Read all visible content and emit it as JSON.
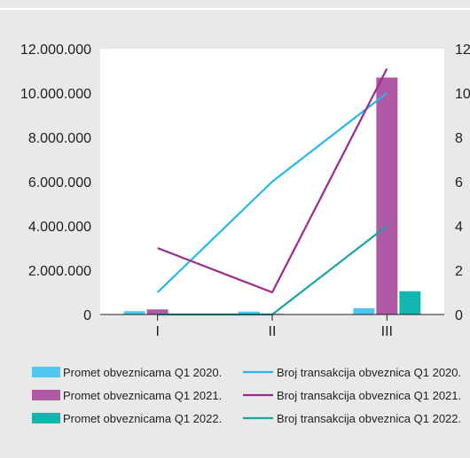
{
  "chart_data": {
    "type": "bar",
    "categories": [
      "I",
      "II",
      "III"
    ],
    "ylim": [
      0,
      12000000
    ],
    "y2lim": [
      0,
      12
    ],
    "yticks": [
      0,
      2000000,
      4000000,
      6000000,
      8000000,
      10000000,
      12000000
    ],
    "ytick_labels": [
      "0",
      "2.000.000",
      "4.000.000",
      "6.000.000",
      "8.000.000",
      "10.000.000",
      "12.000.000"
    ],
    "y2ticks": [
      0,
      2,
      4,
      6,
      8,
      10,
      12
    ],
    "y2tick_labels": [
      "0",
      "2",
      "4",
      "6",
      "8",
      "10",
      "12"
    ],
    "grid": false,
    "legend_position": "bottom",
    "bar_series": [
      {
        "name": "Promet obveznicama Q1 2020.",
        "color": "#4fc8f0",
        "values": [
          150000,
          130000,
          280000
        ]
      },
      {
        "name": "Promet obveznicama Q1 2021.",
        "color": "#b05aa6",
        "values": [
          230000,
          30000,
          10700000
        ]
      },
      {
        "name": "Promet obveznicama Q1 2022.",
        "color": "#13b5b1",
        "values": [
          20000,
          10000,
          1050000
        ]
      }
    ],
    "line_series": [
      {
        "name": "Broj transakcija obveznica Q1 2020.",
        "color": "#24b7ec",
        "values": [
          1,
          6,
          10
        ]
      },
      {
        "name": "Broj transakcija obveznica Q1 2021.",
        "color": "#9b2a8e",
        "values": [
          3,
          1,
          11.1
        ]
      },
      {
        "name": "Broj transakcija obveznica Q1 2022.",
        "color": "#17a59e",
        "values": [
          0,
          0,
          4
        ]
      }
    ]
  }
}
